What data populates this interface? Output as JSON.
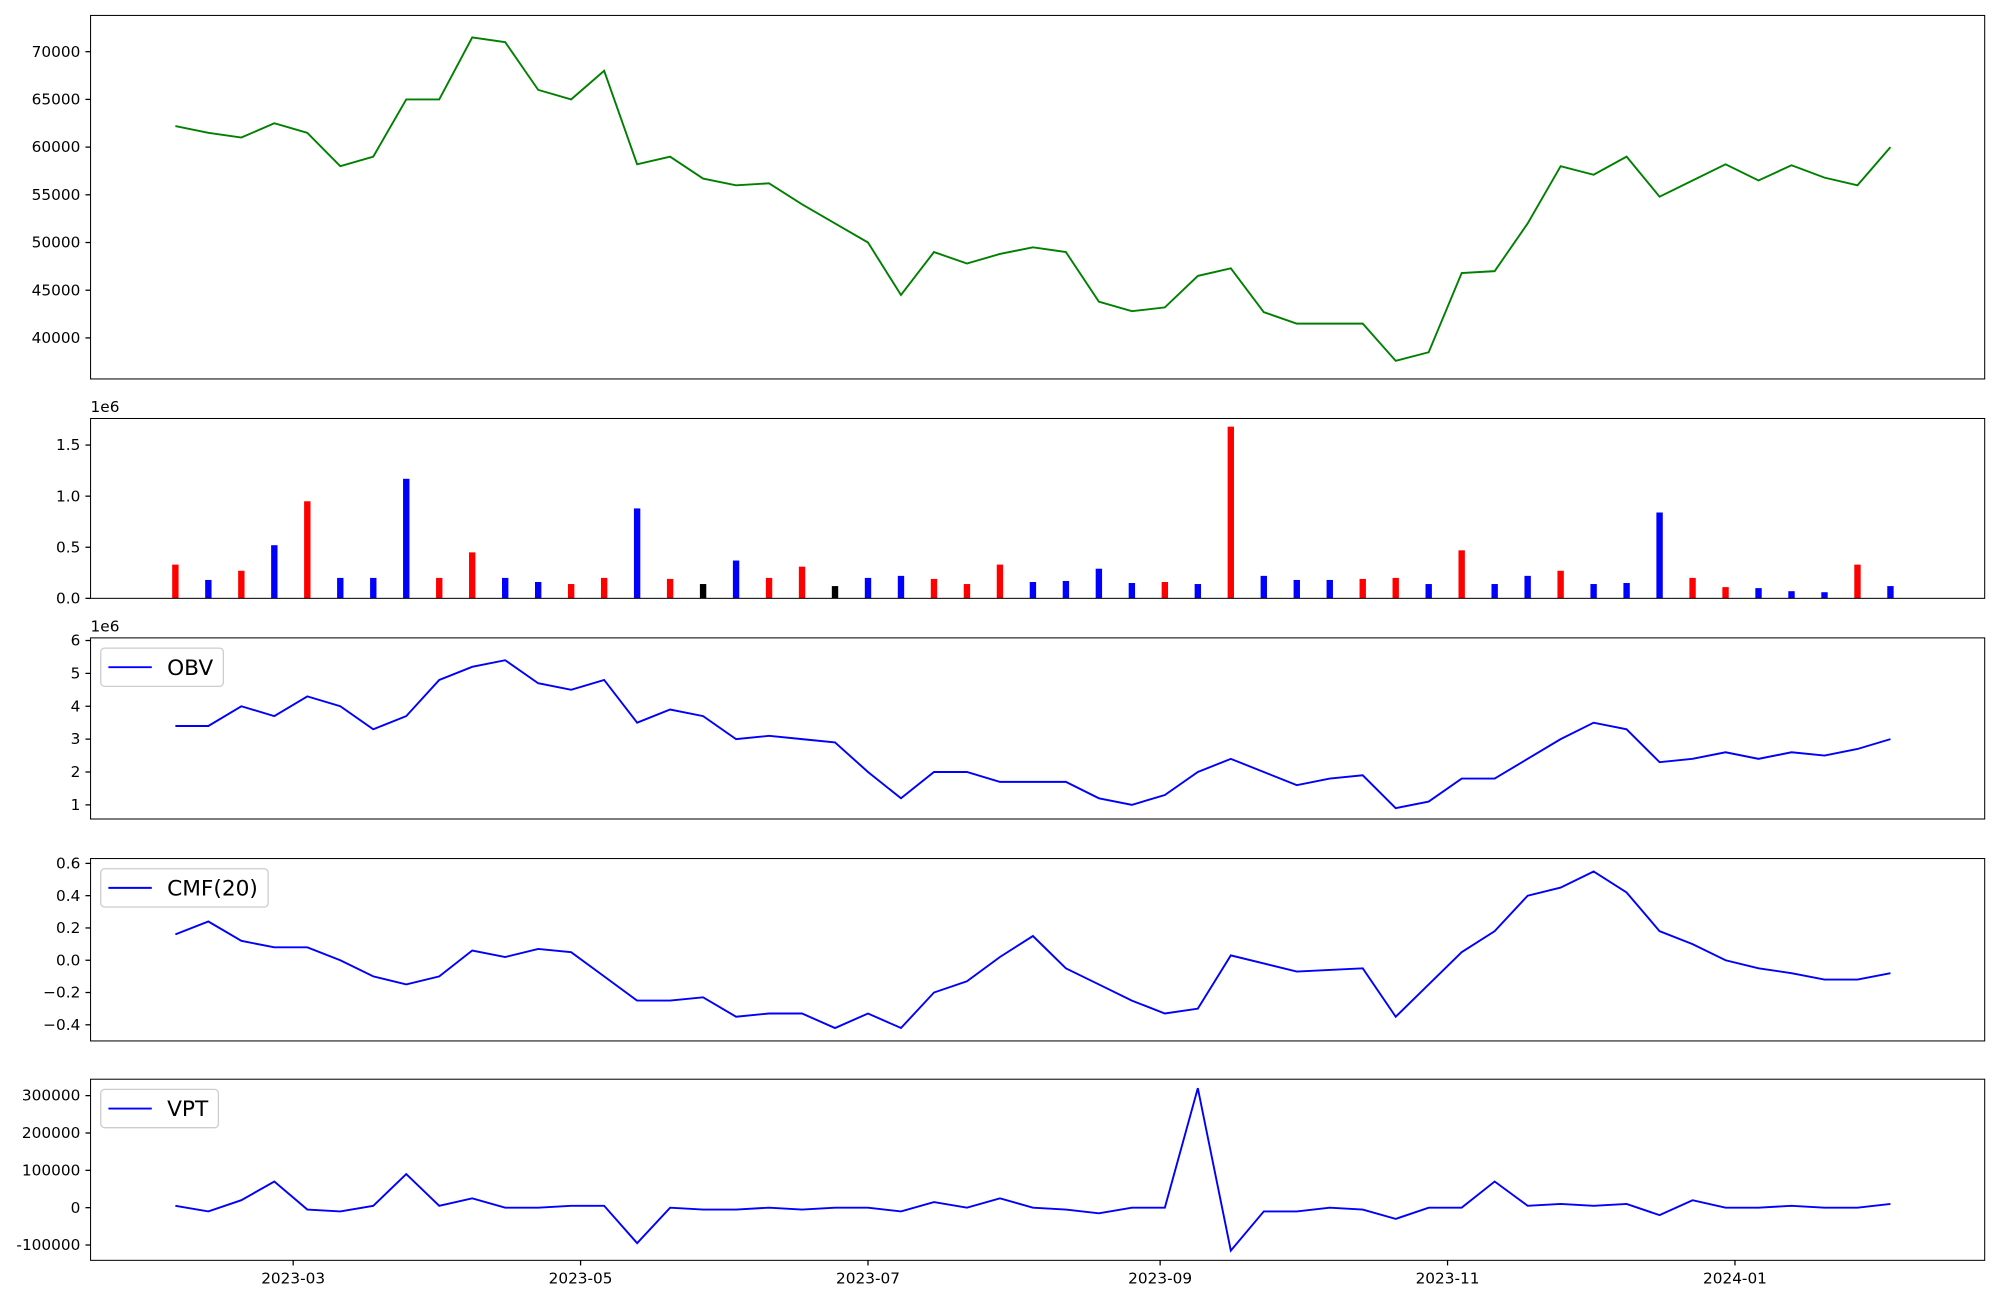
{
  "chart_data": [
    {
      "type": "line",
      "xlim": [
        19374,
        19776
      ],
      "x": [
        19392,
        19399,
        19406,
        19413,
        19420,
        19427,
        19434,
        19441,
        19448,
        19455,
        19462,
        19469,
        19476,
        19483,
        19490,
        19497,
        19504,
        19511,
        19518,
        19525,
        19532,
        19539,
        19546,
        19553,
        19560,
        19567,
        19574,
        19581,
        19588,
        19595,
        19602,
        19609,
        19616,
        19623,
        19630,
        19637,
        19644,
        19651,
        19658,
        19665,
        19672,
        19679,
        19686,
        19693,
        19700,
        19707,
        19714,
        19721,
        19728,
        19735,
        19742,
        19749,
        19756
      ],
      "ylim": [
        35700,
        73800
      ],
      "yticks": [
        40000,
        45000,
        50000,
        55000,
        60000,
        65000,
        70000
      ],
      "series": [
        {
          "color": "green",
          "values": [
            62200,
            61500,
            61000,
            62500,
            61500,
            58000,
            59000,
            65000,
            65000,
            71500,
            71000,
            66000,
            65000,
            68000,
            58200,
            59000,
            56700,
            56000,
            56200,
            54000,
            52000,
            50000,
            44500,
            49000,
            47800,
            48800,
            49500,
            49000,
            43800,
            42800,
            43200,
            46500,
            47300,
            42700,
            41500,
            41500,
            41500,
            37600,
            38500,
            46800,
            47000,
            52000,
            58000,
            57100,
            59000,
            54800,
            56500,
            58200,
            56500,
            58100,
            56800,
            56000,
            60000
          ]
        }
      ]
    },
    {
      "type": "bar",
      "xlim": [
        19374,
        19776
      ],
      "offset_label": "1e6",
      "x": [
        19392,
        19399,
        19406,
        19413,
        19420,
        19427,
        19434,
        19441,
        19448,
        19455,
        19462,
        19469,
        19476,
        19483,
        19490,
        19497,
        19504,
        19511,
        19518,
        19525,
        19532,
        19539,
        19546,
        19553,
        19560,
        19567,
        19574,
        19581,
        19588,
        19595,
        19602,
        19609,
        19616,
        19623,
        19630,
        19637,
        19644,
        19651,
        19658,
        19665,
        19672,
        19679,
        19686,
        19693,
        19700,
        19707,
        19714,
        19721,
        19728,
        19735,
        19742,
        19749,
        19756
      ],
      "ylim": [
        0,
        1760000
      ],
      "yticks": [
        {
          "value": 0,
          "label": "0.0"
        },
        {
          "value": 500000,
          "label": "0.5"
        },
        {
          "value": 1000000,
          "label": "1.0"
        },
        {
          "value": 1500000,
          "label": "1.5"
        }
      ],
      "values": [
        330000,
        180000,
        270000,
        520000,
        950000,
        200000,
        200000,
        1170000,
        200000,
        450000,
        200000,
        160000,
        140000,
        200000,
        880000,
        190000,
        140000,
        370000,
        200000,
        310000,
        120000,
        200000,
        220000,
        190000,
        140000,
        330000,
        160000,
        170000,
        290000,
        150000,
        160000,
        140000,
        1680000,
        220000,
        180000,
        180000,
        190000,
        200000,
        140000,
        470000,
        140000,
        220000,
        270000,
        140000,
        150000,
        840000,
        200000,
        110000,
        100000,
        70000,
        60000,
        330000,
        120000
      ],
      "colors": [
        "red",
        "blue",
        "red",
        "blue",
        "red",
        "blue",
        "blue",
        "blue",
        "red",
        "red",
        "blue",
        "blue",
        "red",
        "red",
        "blue",
        "red",
        "black",
        "blue",
        "red",
        "red",
        "black",
        "blue",
        "blue",
        "red",
        "red",
        "red",
        "blue",
        "blue",
        "blue",
        "blue",
        "red",
        "blue",
        "red",
        "blue",
        "blue",
        "blue",
        "red",
        "red",
        "blue",
        "red",
        "blue",
        "blue",
        "red",
        "blue",
        "blue",
        "blue",
        "red",
        "red",
        "blue",
        "blue",
        "blue",
        "red",
        "blue"
      ]
    },
    {
      "type": "line",
      "xlim": [
        19374,
        19776
      ],
      "offset_label": "1e6",
      "legend": "upper left",
      "x": [
        19392,
        19399,
        19406,
        19413,
        19420,
        19427,
        19434,
        19441,
        19448,
        19455,
        19462,
        19469,
        19476,
        19483,
        19490,
        19497,
        19504,
        19511,
        19518,
        19525,
        19532,
        19539,
        19546,
        19553,
        19560,
        19567,
        19574,
        19581,
        19588,
        19595,
        19602,
        19609,
        19616,
        19623,
        19630,
        19637,
        19644,
        19651,
        19658,
        19665,
        19672,
        19679,
        19686,
        19693,
        19700,
        19707,
        19714,
        19721,
        19728,
        19735,
        19742,
        19749,
        19756
      ],
      "ylim": [
        570000,
        6080000
      ],
      "yticks": [
        {
          "value": 1000000,
          "label": "1"
        },
        {
          "value": 2000000,
          "label": "2"
        },
        {
          "value": 3000000,
          "label": "3"
        },
        {
          "value": 4000000,
          "label": "4"
        },
        {
          "value": 5000000,
          "label": "5"
        },
        {
          "value": 6000000,
          "label": "6"
        }
      ],
      "series": [
        {
          "name": "OBV",
          "color": "blue",
          "values": [
            3400000,
            3400000,
            4000000,
            3700000,
            4300000,
            4000000,
            3300000,
            3700000,
            4800000,
            5200000,
            5400000,
            4700000,
            4500000,
            4800000,
            3500000,
            3900000,
            3700000,
            3000000,
            3100000,
            3000000,
            2900000,
            2000000,
            1200000,
            2000000,
            2000000,
            1700000,
            1700000,
            1700000,
            1200000,
            1000000,
            1300000,
            2000000,
            2400000,
            2000000,
            1600000,
            1800000,
            1900000,
            900000,
            1100000,
            1800000,
            1800000,
            2400000,
            3000000,
            3500000,
            3300000,
            2300000,
            2400000,
            2600000,
            2400000,
            2600000,
            2500000,
            2700000,
            3000000
          ]
        }
      ]
    },
    {
      "type": "line",
      "xlim": [
        19374,
        19776
      ],
      "legend": "upper left",
      "x": [
        19392,
        19399,
        19406,
        19413,
        19420,
        19427,
        19434,
        19441,
        19448,
        19455,
        19462,
        19469,
        19476,
        19483,
        19490,
        19497,
        19504,
        19511,
        19518,
        19525,
        19532,
        19539,
        19546,
        19553,
        19560,
        19567,
        19574,
        19581,
        19588,
        19595,
        19602,
        19609,
        19616,
        19623,
        19630,
        19637,
        19644,
        19651,
        19658,
        19665,
        19672,
        19679,
        19686,
        19693,
        19700,
        19707,
        19714,
        19721,
        19728,
        19735,
        19742,
        19749,
        19756
      ],
      "ylim": [
        -0.5,
        0.63
      ],
      "yticks": [
        {
          "value": -0.4,
          "label": "−0.4"
        },
        {
          "value": -0.2,
          "label": "−0.2"
        },
        {
          "value": 0,
          "label": "0.0"
        },
        0.2,
        0.4,
        0.6
      ],
      "series": [
        {
          "name": "CMF(20)",
          "color": "blue",
          "values": [
            0.16,
            0.24,
            0.12,
            0.08,
            0.08,
            0.0,
            -0.1,
            -0.15,
            -0.1,
            0.06,
            0.02,
            0.07,
            0.05,
            -0.1,
            -0.25,
            -0.25,
            -0.23,
            -0.35,
            -0.33,
            -0.33,
            -0.42,
            -0.33,
            -0.42,
            -0.2,
            -0.13,
            0.02,
            0.15,
            -0.05,
            -0.15,
            -0.25,
            -0.33,
            -0.3,
            0.03,
            -0.02,
            -0.07,
            -0.06,
            -0.05,
            -0.35,
            -0.15,
            0.05,
            0.18,
            0.4,
            0.45,
            0.55,
            0.42,
            0.18,
            0.1,
            0.0,
            -0.05,
            -0.08,
            -0.12,
            -0.12,
            -0.08
          ]
        }
      ]
    },
    {
      "type": "line",
      "xlim": [
        19374,
        19776
      ],
      "legend": "upper left",
      "x": [
        19392,
        19399,
        19406,
        19413,
        19420,
        19427,
        19434,
        19441,
        19448,
        19455,
        19462,
        19469,
        19476,
        19483,
        19490,
        19497,
        19504,
        19511,
        19518,
        19525,
        19532,
        19539,
        19546,
        19553,
        19560,
        19567,
        19574,
        19581,
        19588,
        19595,
        19602,
        19609,
        19616,
        19623,
        19630,
        19637,
        19644,
        19651,
        19658,
        19665,
        19672,
        19679,
        19686,
        19693,
        19700,
        19707,
        19714,
        19721,
        19728,
        19735,
        19742,
        19749,
        19756
      ],
      "xticks": [
        {
          "value": 19417,
          "label": "2023-03"
        },
        {
          "value": 19478,
          "label": "2023-05"
        },
        {
          "value": 19539,
          "label": "2023-07"
        },
        {
          "value": 19601,
          "label": "2023-09"
        },
        {
          "value": 19662,
          "label": "2023-11"
        },
        {
          "value": 19723,
          "label": "2024-01"
        }
      ],
      "ylim": [
        -141000,
        344000
      ],
      "yticks": [
        -100000,
        0,
        100000,
        200000,
        300000
      ],
      "series": [
        {
          "name": "VPT",
          "color": "blue",
          "values": [
            5000,
            -10000,
            20000,
            70000,
            -5000,
            -10000,
            5000,
            90000,
            5000,
            25000,
            0,
            0,
            5000,
            5000,
            -95000,
            0,
            -5000,
            -5000,
            0,
            -5000,
            0,
            0,
            -10000,
            15000,
            0,
            25000,
            0,
            -5000,
            -15000,
            0,
            0,
            320000,
            -115000,
            -10000,
            -10000,
            0,
            -5000,
            -30000,
            0,
            0,
            70000,
            5000,
            10000,
            5000,
            10000,
            -20000,
            20000,
            0,
            0,
            5000,
            0,
            0,
            10000
          ]
        }
      ]
    }
  ]
}
